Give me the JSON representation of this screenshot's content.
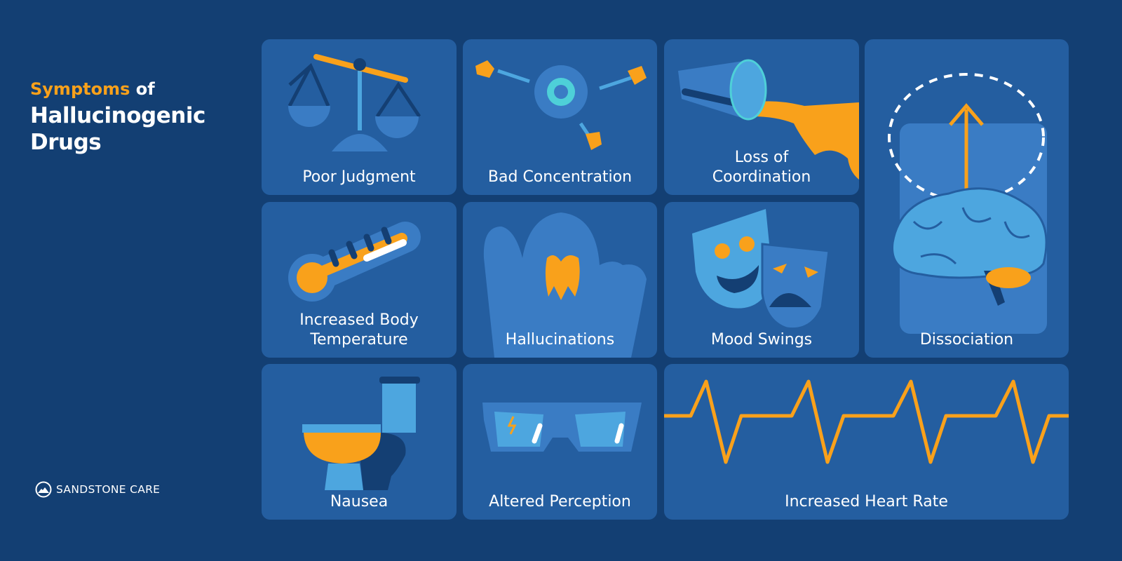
{
  "title": {
    "accent": "Symptoms",
    "of": "of",
    "line2": "Hallucinogenic",
    "line3": "Drugs"
  },
  "brand": {
    "name": "SANDSTONE CARE"
  },
  "colors": {
    "background": "#133f73",
    "tile": "#245ea0",
    "accent": "#f9a11b",
    "light_blue": "#4da6df",
    "dark_blue": "#143f73"
  },
  "tiles": [
    {
      "label": "Poor Judgment",
      "icon": "scale-icon"
    },
    {
      "label": "Bad Concentration",
      "icon": "target-darts-icon"
    },
    {
      "label": "Loss of",
      "label2": "Coordination",
      "icon": "spilled-glass-icon"
    },
    {
      "label": "Dissociation",
      "icon": "brain-thought-icon"
    },
    {
      "label": "Increased Body",
      "label2": "Temperature",
      "icon": "thermometer-icon"
    },
    {
      "label": "Hallucinations",
      "icon": "ghost-icon"
    },
    {
      "label": "Mood Swings",
      "icon": "theater-masks-icon"
    },
    {
      "label": "Nausea",
      "icon": "toilet-icon"
    },
    {
      "label": "Altered Perception",
      "icon": "glasses-icon"
    },
    {
      "label": "Increased Heart Rate",
      "icon": "heartbeat-icon"
    }
  ]
}
